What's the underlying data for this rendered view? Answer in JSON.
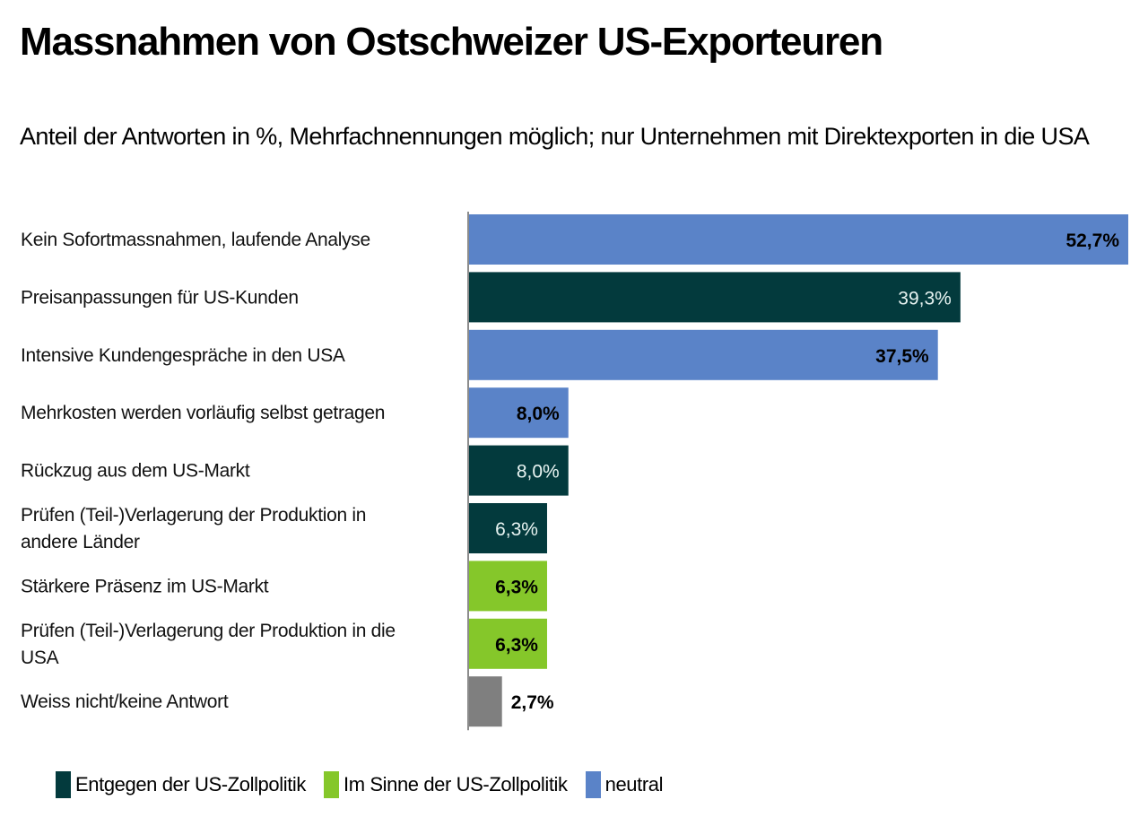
{
  "header": {
    "title": "Massnahmen von Ostschweizer US-Exporteuren",
    "subtitle": "Anteil der Antworten in %, Mehrfachnennungen möglich; nur Unternehmen mit Direktexporten in die USA"
  },
  "colors": {
    "against": "#033A3D",
    "inline": "#85C72A",
    "neutral": "#5A83C8",
    "unknown": "#7F7F7F",
    "axis": "#8C8C8C"
  },
  "chart_data": {
    "type": "bar",
    "orientation": "horizontal",
    "title": "Massnahmen von Ostschweizer US-Exporteuren",
    "subtitle": "Anteil der Antworten in %, Mehrfachnennungen möglich; nur Unternehmen mit Direktexporten in die USA",
    "xlabel": "",
    "ylabel": "",
    "unit": "%",
    "xlim": [
      0,
      52.7
    ],
    "grid": false,
    "legend_position": "bottom-left",
    "categories": [
      [
        "Kein Sofortmassnahmen, laufende Analyse"
      ],
      [
        "Preisanpassungen für US-Kunden"
      ],
      [
        "Intensive Kundengespräche in den USA"
      ],
      [
        "Mehrkosten werden vorläufig selbst getragen"
      ],
      [
        "Rückzug aus dem US-Markt"
      ],
      [
        "Prüfen (Teil-)Verlagerung der Produktion in",
        "andere Länder"
      ],
      [
        "Stärkere Präsenz im US-Markt"
      ],
      [
        "Prüfen (Teil-)Verlagerung der Produktion in die",
        "USA"
      ],
      [
        "Weiss nicht/keine Antwort"
      ]
    ],
    "values": [
      52.7,
      39.3,
      37.5,
      8.0,
      8.0,
      6.3,
      6.3,
      6.3,
      2.7
    ],
    "value_labels": [
      "52,7%",
      "39,3%",
      "37,5%",
      "8,0%",
      "8,0%",
      "6,3%",
      "6,3%",
      "6,3%",
      "2,7%"
    ],
    "groups": [
      "neutral",
      "against",
      "neutral",
      "neutral",
      "against",
      "against",
      "inline",
      "inline",
      "unknown"
    ],
    "legend": [
      {
        "key": "against",
        "label": "Entgegen der US-Zollpolitik"
      },
      {
        "key": "inline",
        "label": "Im Sinne der US-Zollpolitik"
      },
      {
        "key": "neutral",
        "label": "neutral"
      }
    ]
  }
}
